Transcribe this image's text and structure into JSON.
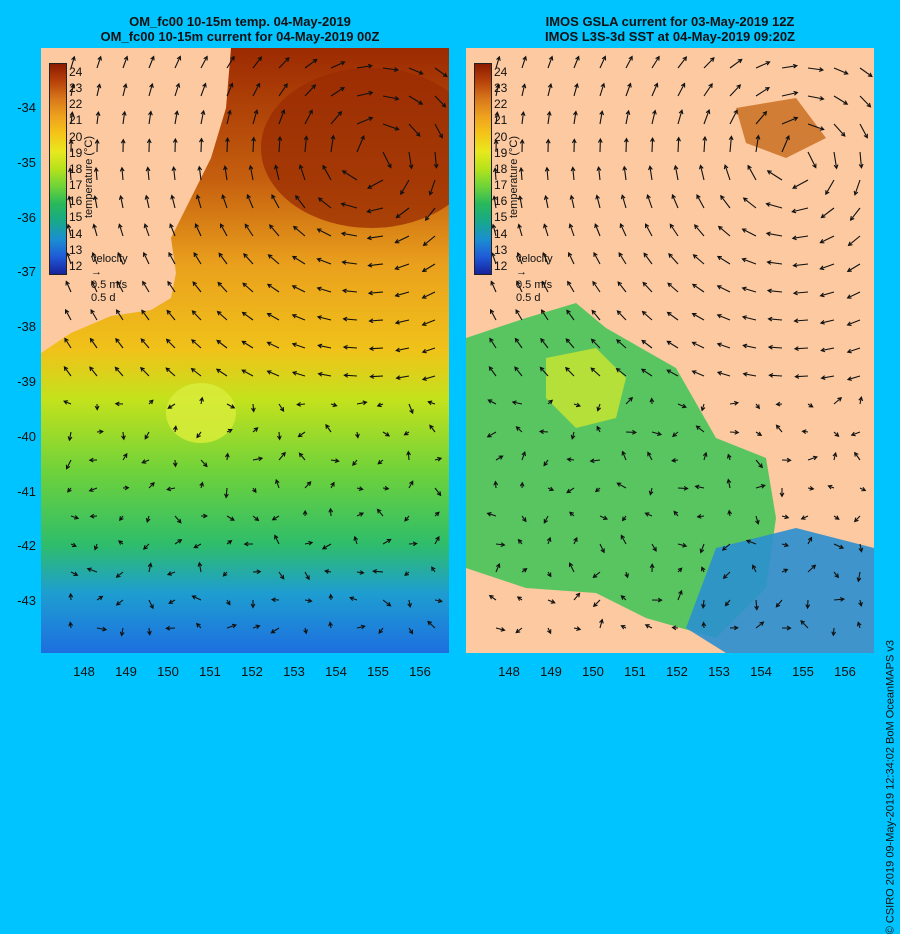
{
  "left_panel": {
    "title_line1": "OM_fc00 10-15m temp. 04-May-2019",
    "title_line2": "OM_fc00 10-15m current for 04-May-2019 00Z"
  },
  "right_panel": {
    "title_line1": "IMOS GSLA current for 03-May-2019 12Z",
    "title_line2": "IMOS L3S-3d SST at 04-May-2019 09:20Z"
  },
  "colorbar": {
    "label": "temperature (°C)",
    "ticks": [
      "24",
      "23",
      "22",
      "21",
      "20",
      "19",
      "18",
      "17",
      "16",
      "15",
      "14",
      "13",
      "12"
    ],
    "colors": [
      "#8b1a00",
      "#b8420a",
      "#d8781b",
      "#eea21e",
      "#f5c518",
      "#e8e81e",
      "#b5e21c",
      "#6ed338",
      "#28b85a",
      "#18a88a",
      "#1b8fd0",
      "#1f5bd8",
      "#16239c"
    ]
  },
  "velocity_legend": {
    "title": "velocity",
    "speed": "0.5 m/s",
    "duration": "0.5 d"
  },
  "y_axis": [
    "-34",
    "-35",
    "-36",
    "-37",
    "-38",
    "-39",
    "-40",
    "-41",
    "-42",
    "-43"
  ],
  "x_axis": [
    "148",
    "149",
    "150",
    "151",
    "152",
    "153",
    "154",
    "155",
    "156"
  ],
  "credit": "© CSIRO 2019   09-May-2019 12:34:02 BoM OceanMAPS v3",
  "colors": {
    "background": "#00c4ff",
    "land": "#fcc9a0"
  }
}
